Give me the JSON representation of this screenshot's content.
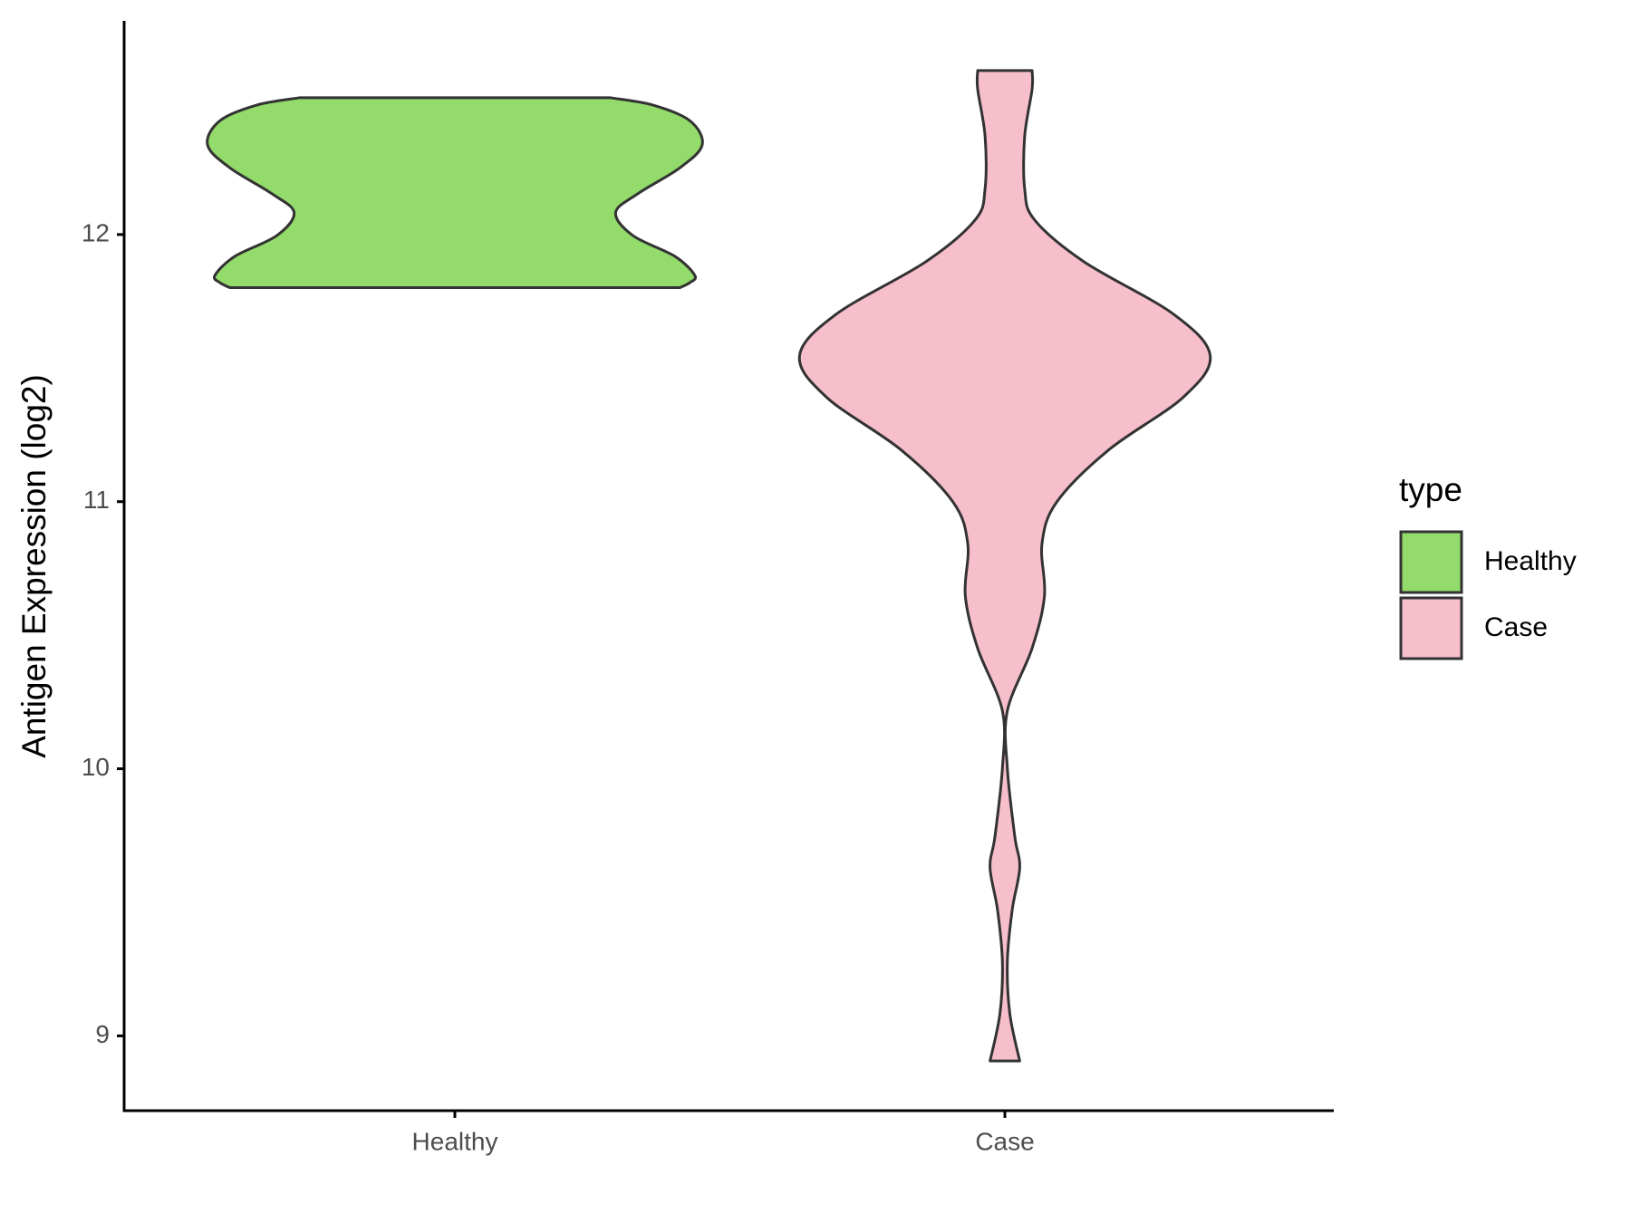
{
  "chart_data": {
    "type": "violin",
    "y_label": "Antigen Expression (log2)",
    "categories": [
      "Healthy",
      "Case"
    ],
    "series": [
      {
        "name": "Healthy",
        "color": "#93db6a",
        "y": [
          12.512,
          12.485,
          12.426,
          12.336,
          12.25,
          12.153,
          12.082,
          11.996,
          11.918,
          11.847,
          11.82,
          11.801
        ],
        "width": [
          0.63,
          0.8,
          0.95,
          1.0,
          0.91,
          0.74,
          0.65,
          0.72,
          0.89,
          0.97,
          0.95,
          0.91
        ]
      },
      {
        "name": "Case",
        "color": "#f7bfcb",
        "y": [
          12.614,
          12.544,
          12.368,
          12.172,
          12.055,
          11.898,
          11.703,
          11.546,
          11.39,
          11.194,
          10.999,
          10.842,
          10.647,
          10.451,
          10.217,
          10.002,
          9.747,
          9.63,
          9.474,
          9.278,
          9.083,
          8.906
        ],
        "width": [
          0.11,
          0.11,
          0.08,
          0.08,
          0.12,
          0.32,
          0.68,
          0.83,
          0.72,
          0.42,
          0.21,
          0.15,
          0.16,
          0.11,
          0.01,
          0.01,
          0.04,
          0.06,
          0.03,
          0.01,
          0.02,
          0.06
        ]
      }
    ],
    "ylim": [
      8.72,
      12.8
    ],
    "yticks": [
      9,
      10,
      11,
      12
    ],
    "legend_title": "type",
    "legend": "right"
  }
}
